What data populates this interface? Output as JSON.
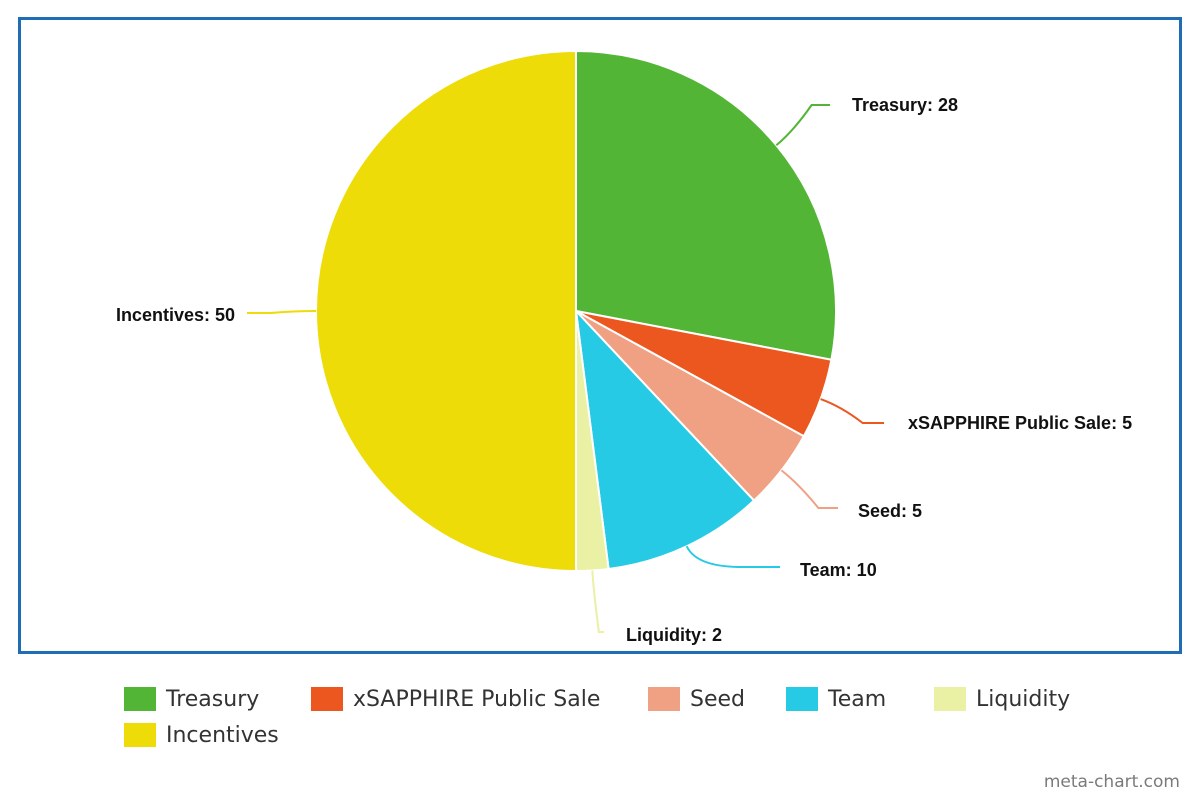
{
  "chart_data": {
    "type": "pie",
    "title": "",
    "categories": [
      "Treasury",
      "xSAPPHIRE Public Sale",
      "Seed",
      "Team",
      "Liquidity",
      "Incentives"
    ],
    "values": [
      28,
      5,
      5,
      10,
      2,
      50
    ],
    "colors": [
      "#53b535",
      "#ec561f",
      "#f0a083",
      "#26cae4",
      "#eaf0a4",
      "#eddc07"
    ],
    "data_labels": [
      "Treasury: 28",
      "xSAPPHIRE Public Sale: 5",
      "Seed: 5",
      "Team: 10",
      "Liquidity: 2",
      "Incentives: 50"
    ],
    "start_angle": "12 o'clock",
    "direction": "clockwise",
    "legend": {
      "position": "bottom",
      "entries": [
        "Treasury",
        "xSAPPHIRE Public Sale",
        "Seed",
        "Team",
        "Liquidity",
        "Incentives"
      ]
    },
    "frame_color": "#1f6db5"
  },
  "watermark": "meta-chart.com"
}
